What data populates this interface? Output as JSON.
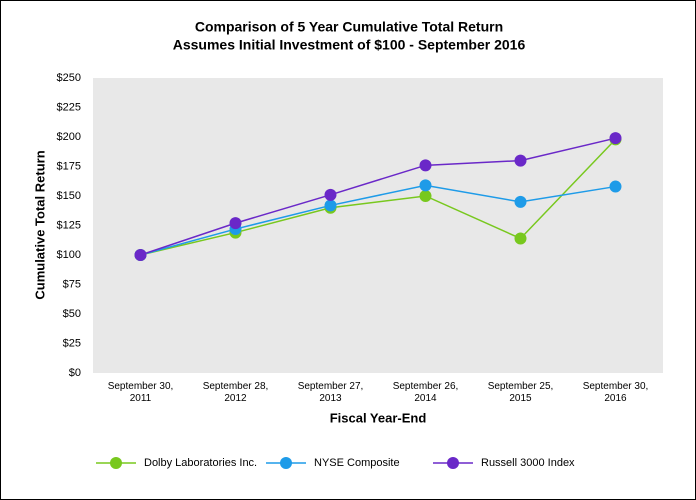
{
  "chart_data": {
    "type": "line",
    "title": "Comparison of 5 Year Cumulative Total Return",
    "subtitle": "Assumes Initial Investment of $100 - September 2016",
    "x_label": "Fiscal Year-End",
    "y_label": "Cumulative Total Return",
    "categories": [
      "September 30, 2011",
      "September 28, 2012",
      "September 27, 2013",
      "September 26, 2014",
      "September 25, 2015",
      "September 30, 2016"
    ],
    "series": [
      {
        "name": "Dolby Laboratories Inc.",
        "color": "#78c81e",
        "values": [
          100,
          119,
          140,
          150,
          114,
          198
        ]
      },
      {
        "name": "NYSE Composite",
        "color": "#1e9be8",
        "values": [
          100,
          122,
          142,
          159,
          145,
          158
        ]
      },
      {
        "name": "Russell 3000 Index",
        "color": "#6a28c8",
        "values": [
          100,
          127,
          151,
          176,
          180,
          199
        ]
      }
    ],
    "ylim": [
      0,
      250
    ],
    "yticks": [
      {
        "value": 0,
        "label": "$0"
      },
      {
        "value": 25,
        "label": "$25"
      },
      {
        "value": 50,
        "label": "$50"
      },
      {
        "value": 75,
        "label": "$75"
      },
      {
        "value": 100,
        "label": "$100"
      },
      {
        "value": 125,
        "label": "$125"
      },
      {
        "value": 150,
        "label": "$150"
      },
      {
        "value": 175,
        "label": "$175"
      },
      {
        "value": 200,
        "label": "$200"
      },
      {
        "value": 225,
        "label": "$225"
      },
      {
        "value": 250,
        "label": "$250"
      }
    ],
    "grid": false,
    "legend": "bottom"
  }
}
